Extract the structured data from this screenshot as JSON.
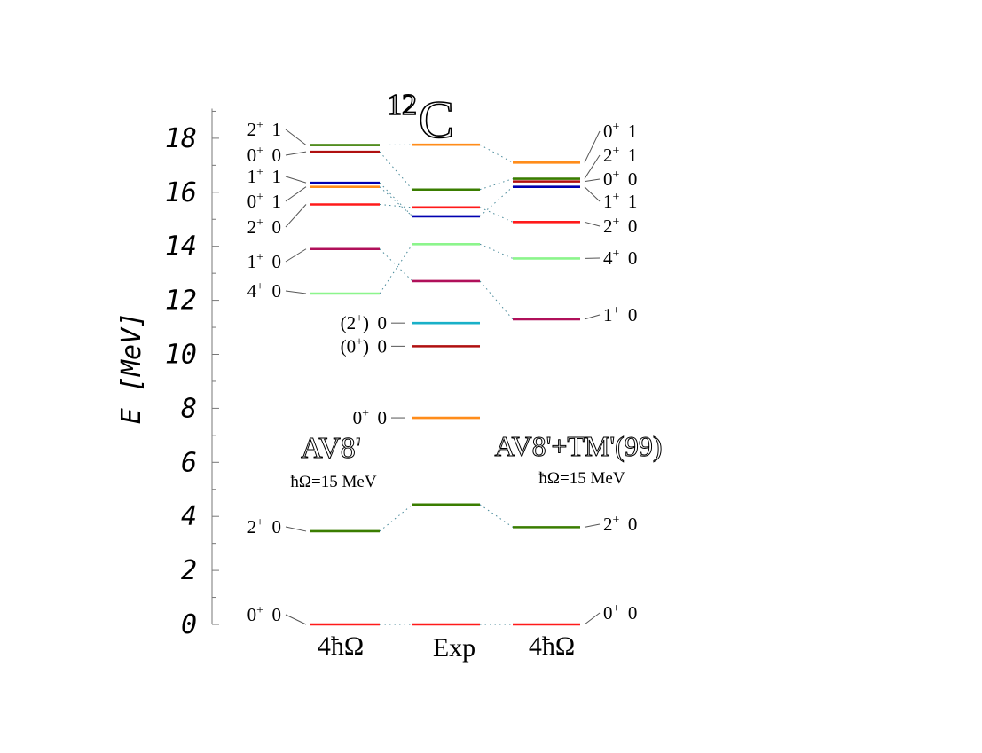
{
  "chart_data": {
    "type": "level-scheme",
    "title": {
      "sup": "12",
      "main": "C"
    },
    "ylabel": "E [MeV]",
    "ylim": [
      0,
      19
    ],
    "yticks": [
      "0",
      "2",
      "4",
      "6",
      "8",
      "10",
      "12",
      "14",
      "16",
      "18"
    ],
    "columns": [
      {
        "name": "AV8'",
        "subtitle": "ħΩ=15 MeV",
        "footer": "4ħΩ",
        "levels": [
          {
            "label": "0⁺ 0",
            "energy": 0.0,
            "color": "#ff1a1a"
          },
          {
            "label": "2⁺ 0",
            "energy": 3.45,
            "color": "#3a7d00"
          },
          {
            "label": "4⁺ 0",
            "energy": 12.25,
            "color": "#8cf58c"
          },
          {
            "label": "1⁺ 0",
            "energy": 13.9,
            "color": "#b0105a"
          },
          {
            "label": "2⁺ 0",
            "energy": 15.55,
            "color": "#ff1a1a"
          },
          {
            "label": "0⁺ 1",
            "energy": 16.2,
            "color": "#ff8c1a"
          },
          {
            "label": "1⁺ 1",
            "energy": 16.35,
            "color": "#0000b0"
          },
          {
            "label": "0⁺ 0",
            "energy": 17.5,
            "color": "#b01010"
          },
          {
            "label": "2⁺ 1",
            "energy": 17.75,
            "color": "#3a7d00"
          }
        ]
      },
      {
        "name": "",
        "subtitle": "",
        "footer": "Exp",
        "levels": [
          {
            "label": "",
            "energy": 0.0,
            "color": "#ff1a1a"
          },
          {
            "label": "",
            "energy": 4.44,
            "color": "#3a7d00"
          },
          {
            "label": "0⁺ 0",
            "energy": 7.65,
            "color": "#ff8c1a"
          },
          {
            "label": "(0⁺) 0",
            "energy": 10.3,
            "color": "#b01010"
          },
          {
            "label": "(2⁺) 0",
            "energy": 11.16,
            "color": "#1ab0c8"
          },
          {
            "label": "",
            "energy": 12.71,
            "color": "#b0105a"
          },
          {
            "label": "",
            "energy": 14.08,
            "color": "#8cf58c"
          },
          {
            "label": "",
            "energy": 15.11,
            "color": "#0000b0"
          },
          {
            "label": "",
            "energy": 15.44,
            "color": "#ff1a1a"
          },
          {
            "label": "",
            "energy": 16.1,
            "color": "#3a7d00"
          },
          {
            "label": "",
            "energy": 17.76,
            "color": "#ff8c1a"
          }
        ]
      },
      {
        "name": "AV8'+TM'(99)",
        "subtitle": "ħΩ=15 MeV",
        "footer": "4ħΩ",
        "levels": [
          {
            "label": "0⁺ 0",
            "energy": 0.0,
            "color": "#ff1a1a"
          },
          {
            "label": "2⁺ 0",
            "energy": 3.6,
            "color": "#3a7d00"
          },
          {
            "label": "1⁺ 0",
            "energy": 11.3,
            "color": "#b0105a"
          },
          {
            "label": "4⁺ 0",
            "energy": 13.55,
            "color": "#8cf58c"
          },
          {
            "label": "2⁺ 0",
            "energy": 14.9,
            "color": "#ff1a1a"
          },
          {
            "label": "1⁺ 1",
            "energy": 16.2,
            "color": "#0000b0"
          },
          {
            "label": "0⁺ 0",
            "energy": 16.4,
            "color": "#b01010"
          },
          {
            "label": "2⁺ 1",
            "energy": 16.5,
            "color": "#3a7d00"
          },
          {
            "label": "0⁺ 1",
            "energy": 17.1,
            "color": "#ff8c1a"
          }
        ]
      }
    ],
    "grid": false,
    "connectors": "dotted"
  }
}
